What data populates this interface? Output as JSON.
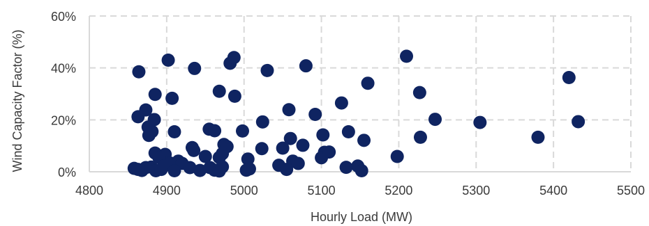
{
  "chart_data": {
    "type": "scatter",
    "xlabel": "Hourly Load (MW)",
    "ylabel": "Wind Capacity Factor (%)",
    "xlim": [
      4800,
      5500
    ],
    "ylim": [
      0,
      60
    ],
    "x_ticks": [
      4800,
      4900,
      5000,
      5100,
      5200,
      5300,
      5400,
      5500
    ],
    "y_ticks": [
      0,
      20,
      40,
      60
    ],
    "x_tick_labels": [
      "4800",
      "4900",
      "5000",
      "5100",
      "5200",
      "5300",
      "5400",
      "5500"
    ],
    "y_tick_labels": [
      "0%",
      "20%",
      "40%",
      "60%"
    ],
    "grid": "vertical dashed and horizontal dashed",
    "marker_color": "#0f2461",
    "points": [
      {
        "x": 4864,
        "y": 38.5
      },
      {
        "x": 4902,
        "y": 43
      },
      {
        "x": 4936,
        "y": 39.8
      },
      {
        "x": 4982,
        "y": 41.8
      },
      {
        "x": 4987,
        "y": 44
      },
      {
        "x": 5030,
        "y": 39
      },
      {
        "x": 5080,
        "y": 40.8
      },
      {
        "x": 5210,
        "y": 44.5
      },
      {
        "x": 5420,
        "y": 36.3
      },
      {
        "x": 4885,
        "y": 29.8
      },
      {
        "x": 4907,
        "y": 28.3
      },
      {
        "x": 4968,
        "y": 31
      },
      {
        "x": 4988,
        "y": 29.1
      },
      {
        "x": 5160,
        "y": 34.1
      },
      {
        "x": 5227,
        "y": 30.5
      },
      {
        "x": 4863,
        "y": 21.2
      },
      {
        "x": 4873,
        "y": 23.8
      },
      {
        "x": 4884,
        "y": 20.1
      },
      {
        "x": 5058,
        "y": 23.9
      },
      {
        "x": 5092,
        "y": 22.1
      },
      {
        "x": 5126,
        "y": 26.5
      },
      {
        "x": 5247,
        "y": 20.2
      },
      {
        "x": 4876,
        "y": 17.2
      },
      {
        "x": 4881,
        "y": 15.5
      },
      {
        "x": 4877,
        "y": 14
      },
      {
        "x": 4910,
        "y": 15.4
      },
      {
        "x": 4955,
        "y": 16.4
      },
      {
        "x": 4962,
        "y": 15.8
      },
      {
        "x": 4998,
        "y": 15.7
      },
      {
        "x": 5024,
        "y": 19.2
      },
      {
        "x": 5102,
        "y": 14.2
      },
      {
        "x": 5135,
        "y": 15.4
      },
      {
        "x": 5155,
        "y": 12.1
      },
      {
        "x": 5305,
        "y": 19
      },
      {
        "x": 5380,
        "y": 13.3
      },
      {
        "x": 5432,
        "y": 19.3
      },
      {
        "x": 4933,
        "y": 9.3
      },
      {
        "x": 4935,
        "y": 8.2
      },
      {
        "x": 4974,
        "y": 10.5
      },
      {
        "x": 4978,
        "y": 9.7
      },
      {
        "x": 5023,
        "y": 8.9
      },
      {
        "x": 5050,
        "y": 9.1
      },
      {
        "x": 5060,
        "y": 12.8
      },
      {
        "x": 5076,
        "y": 10.2
      },
      {
        "x": 5104,
        "y": 7.5
      },
      {
        "x": 5100,
        "y": 5.4
      },
      {
        "x": 5228,
        "y": 13.3
      },
      {
        "x": 5198,
        "y": 5.9
      },
      {
        "x": 4885,
        "y": 7.2
      },
      {
        "x": 4898,
        "y": 6.7
      },
      {
        "x": 4890,
        "y": 5.5
      },
      {
        "x": 4905,
        "y": 3.3
      },
      {
        "x": 4915,
        "y": 4.1
      },
      {
        "x": 4920,
        "y": 3.2
      },
      {
        "x": 4950,
        "y": 5.9
      },
      {
        "x": 4968,
        "y": 5.5
      },
      {
        "x": 4972,
        "y": 7
      },
      {
        "x": 5005,
        "y": 4.9
      },
      {
        "x": 5045,
        "y": 2.5
      },
      {
        "x": 5063,
        "y": 4.1
      },
      {
        "x": 5070,
        "y": 3.2
      },
      {
        "x": 5110,
        "y": 7.6
      },
      {
        "x": 5147,
        "y": 2.2
      },
      {
        "x": 5132,
        "y": 1.7
      },
      {
        "x": 4858,
        "y": 1.3
      },
      {
        "x": 4863,
        "y": 0.9
      },
      {
        "x": 4868,
        "y": 0.5
      },
      {
        "x": 4873,
        "y": 1.6
      },
      {
        "x": 4880,
        "y": 1.8
      },
      {
        "x": 4886,
        "y": 0.4
      },
      {
        "x": 4893,
        "y": 0.9
      },
      {
        "x": 4896,
        "y": 2.2
      },
      {
        "x": 4910,
        "y": 0.4
      },
      {
        "x": 4930,
        "y": 1.6
      },
      {
        "x": 4943,
        "y": 0.5
      },
      {
        "x": 4956,
        "y": 1.6
      },
      {
        "x": 4962,
        "y": 0.6
      },
      {
        "x": 4968,
        "y": 0.3
      },
      {
        "x": 4972,
        "y": 1.9
      },
      {
        "x": 5003,
        "y": 0.6
      },
      {
        "x": 5007,
        "y": 1.1
      },
      {
        "x": 5055,
        "y": 0.9
      },
      {
        "x": 5152,
        "y": 0.4
      }
    ]
  }
}
